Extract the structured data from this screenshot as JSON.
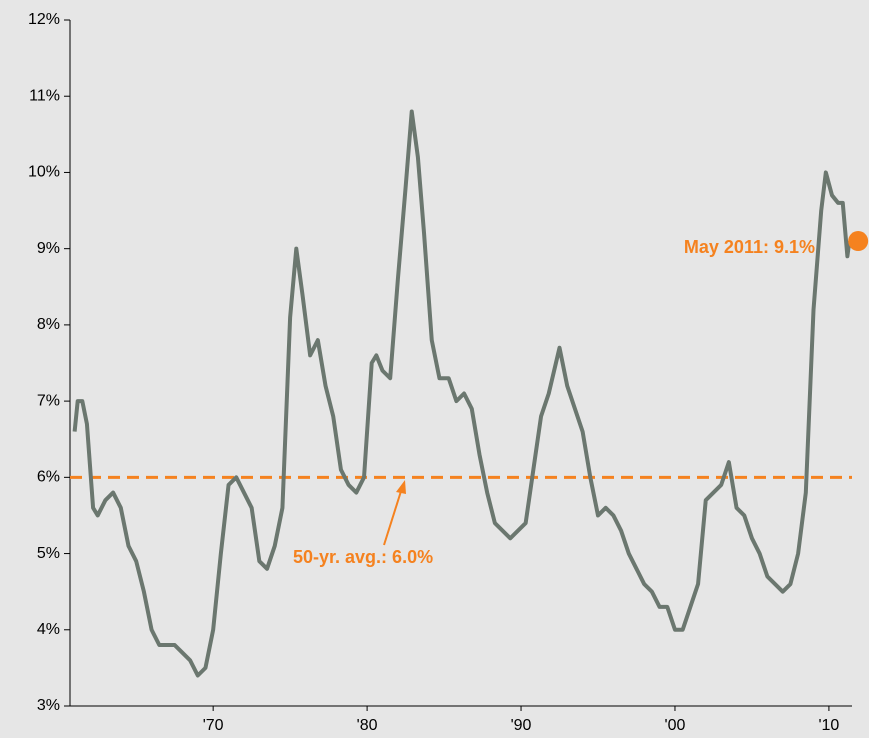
{
  "chart_data": {
    "type": "line",
    "series": [
      {
        "name": null,
        "color": "#6b776f",
        "x": [
          1961.0,
          1961.2,
          1961.5,
          1961.8,
          1962.2,
          1962.5,
          1963.0,
          1963.5,
          1964.0,
          1964.5,
          1965.0,
          1965.5,
          1966.0,
          1966.5,
          1967.0,
          1967.5,
          1968.0,
          1968.5,
          1969.0,
          1969.5,
          1970.0,
          1970.5,
          1971.0,
          1971.5,
          1972.0,
          1972.5,
          1973.0,
          1973.5,
          1974.0,
          1974.5,
          1975.0,
          1975.4,
          1975.8,
          1976.3,
          1976.8,
          1977.3,
          1977.8,
          1978.3,
          1978.8,
          1979.3,
          1979.8,
          1980.3,
          1980.6,
          1981.0,
          1981.5,
          1982.0,
          1982.5,
          1982.9,
          1983.3,
          1983.7,
          1984.2,
          1984.7,
          1985.3,
          1985.8,
          1986.3,
          1986.8,
          1987.3,
          1987.8,
          1988.3,
          1988.8,
          1989.3,
          1989.8,
          1990.3,
          1990.8,
          1991.3,
          1991.8,
          1992.5,
          1993.0,
          1993.5,
          1994.0,
          1994.5,
          1995.0,
          1995.5,
          1996.0,
          1996.5,
          1997.0,
          1997.5,
          1998.0,
          1998.5,
          1999.0,
          1999.5,
          2000.0,
          2000.5,
          2001.0,
          2001.5,
          2002.0,
          2002.5,
          2003.0,
          2003.5,
          2004.0,
          2004.5,
          2005.0,
          2005.5,
          2006.0,
          2006.5,
          2007.0,
          2007.5,
          2008.0,
          2008.5,
          2009.0,
          2009.5,
          2009.8,
          2010.2,
          2010.6,
          2010.9,
          2011.2,
          2011.33
        ],
        "values": [
          6.6,
          7.0,
          7.0,
          6.7,
          5.6,
          5.5,
          5.7,
          5.8,
          5.6,
          5.1,
          4.9,
          4.5,
          4.0,
          3.8,
          3.8,
          3.8,
          3.7,
          3.6,
          3.4,
          3.5,
          4.0,
          5.0,
          5.9,
          6.0,
          5.8,
          5.6,
          4.9,
          4.8,
          5.1,
          5.6,
          8.1,
          9.0,
          8.4,
          7.6,
          7.8,
          7.2,
          6.8,
          6.1,
          5.9,
          5.8,
          6.0,
          7.5,
          7.6,
          7.4,
          7.3,
          8.6,
          9.8,
          10.8,
          10.2,
          9.2,
          7.8,
          7.3,
          7.3,
          7.0,
          7.1,
          6.9,
          6.3,
          5.8,
          5.4,
          5.3,
          5.2,
          5.3,
          5.4,
          6.1,
          6.8,
          7.1,
          7.7,
          7.2,
          6.9,
          6.6,
          6.0,
          5.5,
          5.6,
          5.5,
          5.3,
          5.0,
          4.8,
          4.6,
          4.5,
          4.3,
          4.3,
          4.0,
          4.0,
          4.3,
          4.6,
          5.7,
          5.8,
          5.9,
          6.2,
          5.6,
          5.5,
          5.2,
          5.0,
          4.7,
          4.6,
          4.5,
          4.6,
          5.0,
          5.8,
          8.2,
          9.5,
          10.0,
          9.7,
          9.6,
          9.6,
          8.9,
          9.1
        ]
      }
    ],
    "average": {
      "value": 6.0,
      "label": "50-yr. avg.: 6.0%",
      "color": "#f5821f"
    },
    "latest": {
      "x": 2011.9,
      "value": 9.1,
      "label": "May 2011:  9.1%",
      "color": "#f5821f"
    },
    "xlim": [
      1960.7,
      2011.5
    ],
    "xticks": [
      {
        "value": 1970,
        "label": "'70"
      },
      {
        "value": 1980,
        "label": "'80"
      },
      {
        "value": 1990,
        "label": "'90"
      },
      {
        "value": 2000,
        "label": "'00"
      },
      {
        "value": 2010,
        "label": "'10"
      }
    ],
    "ylim": [
      3,
      12
    ],
    "yticks": [
      {
        "value": 3,
        "label": "3%"
      },
      {
        "value": 4,
        "label": "4%"
      },
      {
        "value": 5,
        "label": "5%"
      },
      {
        "value": 6,
        "label": "6%"
      },
      {
        "value": 7,
        "label": "7%"
      },
      {
        "value": 8,
        "label": "8%"
      },
      {
        "value": 9,
        "label": "9%"
      },
      {
        "value": 10,
        "label": "10%"
      },
      {
        "value": 11,
        "label": "11%"
      },
      {
        "value": 12,
        "label": "12%"
      }
    ],
    "grid": false
  }
}
